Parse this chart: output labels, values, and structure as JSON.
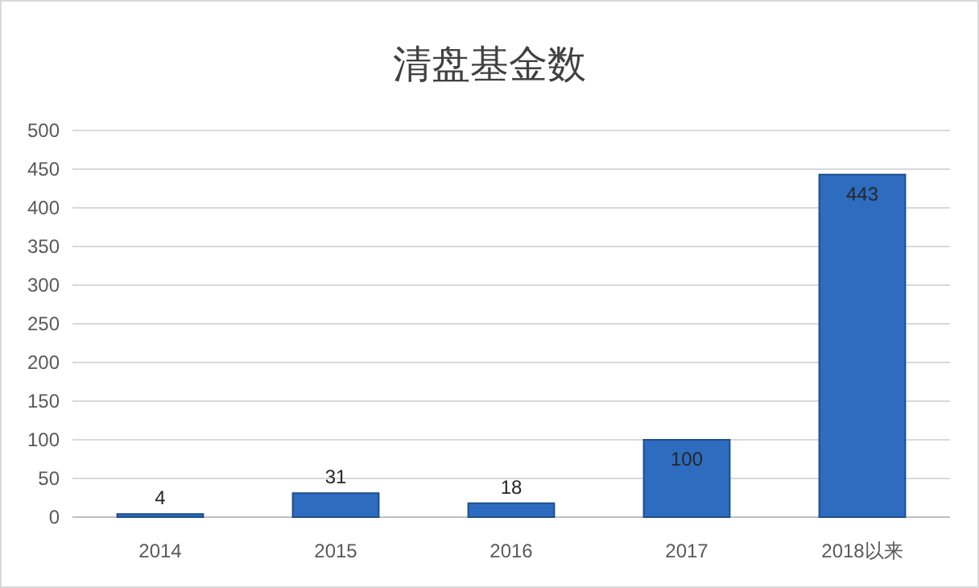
{
  "chart_data": {
    "type": "bar",
    "title": "清盘基金数",
    "categories": [
      "2014",
      "2015",
      "2016",
      "2017",
      "2018以来"
    ],
    "values": [
      4,
      31,
      18,
      100,
      443
    ],
    "color": "#2e6cc0",
    "ylim": [
      0,
      500
    ],
    "yticks": [
      0,
      50,
      100,
      150,
      200,
      250,
      300,
      350,
      400,
      450,
      500
    ],
    "grid": "y",
    "data_labels": true
  }
}
